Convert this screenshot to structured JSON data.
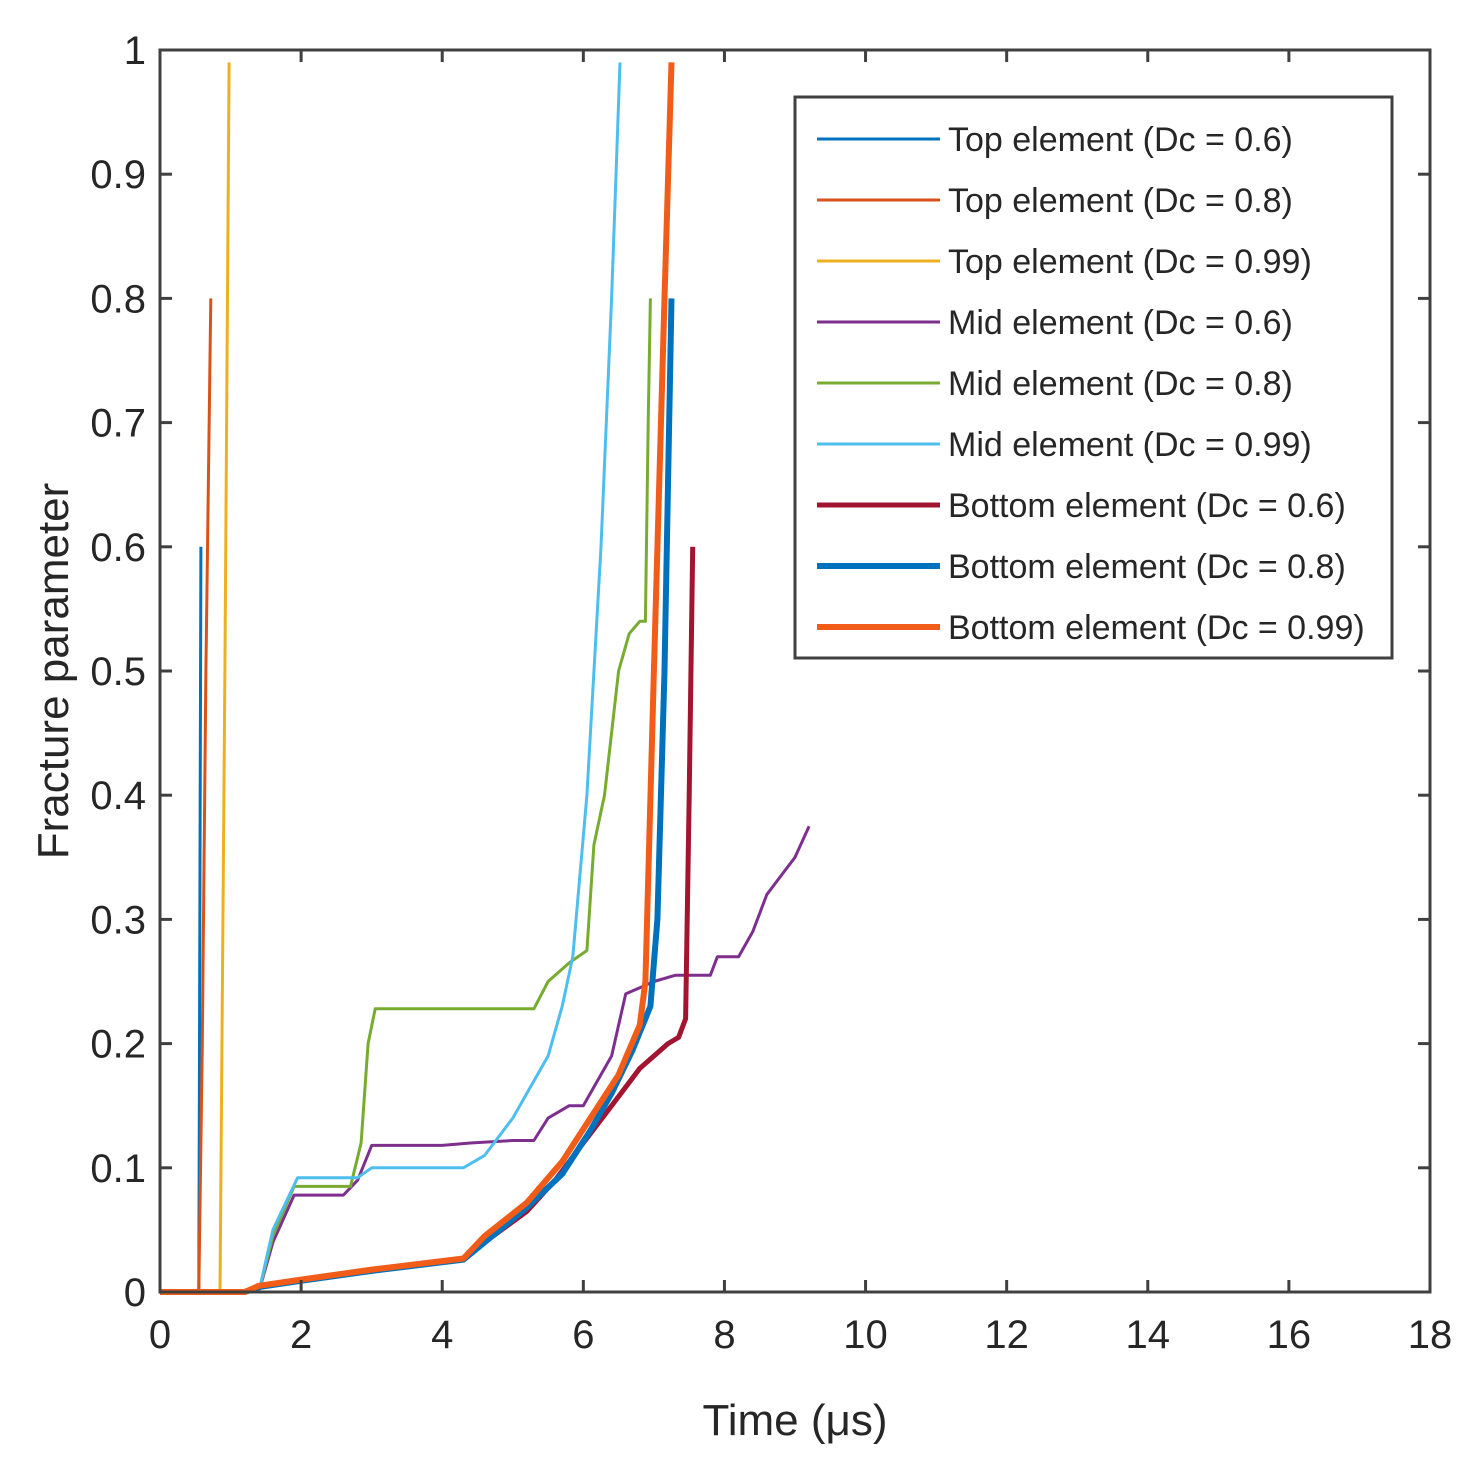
{
  "chart_data": {
    "type": "line",
    "title": "",
    "xlabel": "Time (μs)",
    "ylabel": "Fracture parameter",
    "xlim": [
      0,
      18
    ],
    "ylim": [
      0,
      1
    ],
    "xticks": [
      0,
      2,
      4,
      6,
      8,
      10,
      12,
      14,
      16,
      18
    ],
    "yticks": [
      0,
      0.1,
      0.2,
      0.3,
      0.4,
      0.5,
      0.6,
      0.7,
      0.8,
      0.9,
      1
    ],
    "xtick_labels": [
      "0",
      "2",
      "4",
      "6",
      "8",
      "10",
      "12",
      "14",
      "16",
      "18"
    ],
    "ytick_labels": [
      "0",
      "0.1",
      "0.2",
      "0.3",
      "0.4",
      "0.5",
      "0.6",
      "0.7",
      "0.8",
      "0.9",
      "1"
    ],
    "grid": false,
    "legend_position": "top-right",
    "series": [
      {
        "name": "Top element (Dc = 0.6)",
        "color": "#0072BD",
        "width": 3,
        "points": [
          [
            0,
            0
          ],
          [
            0.55,
            0
          ],
          [
            0.58,
            0.6
          ]
        ]
      },
      {
        "name": "Top element (Dc = 0.8)",
        "color": "#D95319",
        "width": 3,
        "points": [
          [
            0,
            0
          ],
          [
            0.55,
            0
          ],
          [
            0.6,
            0.2
          ],
          [
            0.65,
            0.5
          ],
          [
            0.72,
            0.8
          ]
        ]
      },
      {
        "name": "Top element (Dc = 0.99)",
        "color": "#EDB120",
        "width": 3,
        "points": [
          [
            0,
            0
          ],
          [
            0.85,
            0
          ],
          [
            0.92,
            0.5
          ],
          [
            0.98,
            0.99
          ]
        ]
      },
      {
        "name": "Mid element (Dc = 0.6)",
        "color": "#7E2F8E",
        "width": 3,
        "points": [
          [
            0,
            0
          ],
          [
            1.4,
            0
          ],
          [
            1.6,
            0.04
          ],
          [
            1.9,
            0.078
          ],
          [
            2.6,
            0.078
          ],
          [
            2.8,
            0.09
          ],
          [
            3.0,
            0.118
          ],
          [
            4.0,
            0.118
          ],
          [
            4.4,
            0.12
          ],
          [
            5.0,
            0.122
          ],
          [
            5.3,
            0.122
          ],
          [
            5.5,
            0.14
          ],
          [
            5.8,
            0.15
          ],
          [
            6.0,
            0.15
          ],
          [
            6.2,
            0.17
          ],
          [
            6.4,
            0.19
          ],
          [
            6.6,
            0.24
          ],
          [
            6.8,
            0.245
          ],
          [
            7.0,
            0.25
          ],
          [
            7.3,
            0.255
          ],
          [
            7.8,
            0.255
          ],
          [
            7.9,
            0.27
          ],
          [
            8.2,
            0.27
          ],
          [
            8.4,
            0.29
          ],
          [
            8.6,
            0.32
          ],
          [
            8.8,
            0.335
          ],
          [
            9.0,
            0.35
          ],
          [
            9.2,
            0.375
          ]
        ]
      },
      {
        "name": "Mid element (Dc = 0.8)",
        "color": "#77AC30",
        "width": 3,
        "points": [
          [
            0,
            0
          ],
          [
            1.4,
            0
          ],
          [
            1.6,
            0.045
          ],
          [
            1.9,
            0.085
          ],
          [
            2.7,
            0.085
          ],
          [
            2.85,
            0.12
          ],
          [
            2.95,
            0.2
          ],
          [
            3.05,
            0.228
          ],
          [
            5.3,
            0.228
          ],
          [
            5.5,
            0.25
          ],
          [
            5.8,
            0.265
          ],
          [
            6.05,
            0.275
          ],
          [
            6.15,
            0.36
          ],
          [
            6.3,
            0.4
          ],
          [
            6.5,
            0.5
          ],
          [
            6.65,
            0.53
          ],
          [
            6.8,
            0.54
          ],
          [
            6.88,
            0.54
          ],
          [
            6.92,
            0.7
          ],
          [
            6.95,
            0.8
          ]
        ]
      },
      {
        "name": "Mid element (Dc = 0.99)",
        "color": "#4DBEEE",
        "width": 3,
        "points": [
          [
            0,
            0
          ],
          [
            1.4,
            0
          ],
          [
            1.6,
            0.05
          ],
          [
            1.95,
            0.092
          ],
          [
            2.8,
            0.092
          ],
          [
            3.0,
            0.1
          ],
          [
            4.3,
            0.1
          ],
          [
            4.6,
            0.11
          ],
          [
            5.0,
            0.14
          ],
          [
            5.2,
            0.16
          ],
          [
            5.5,
            0.19
          ],
          [
            5.7,
            0.23
          ],
          [
            5.85,
            0.27
          ],
          [
            6.05,
            0.4
          ],
          [
            6.25,
            0.6
          ],
          [
            6.4,
            0.8
          ],
          [
            6.52,
            0.99
          ]
        ]
      },
      {
        "name": "Bottom element (Dc = 0.6)",
        "color": "#A2142F",
        "width": 5,
        "points": [
          [
            0,
            0
          ],
          [
            1.2,
            0
          ],
          [
            1.4,
            0.005
          ],
          [
            2.0,
            0.01
          ],
          [
            3.0,
            0.018
          ],
          [
            4.3,
            0.027
          ],
          [
            4.6,
            0.04
          ],
          [
            5.2,
            0.065
          ],
          [
            5.6,
            0.09
          ],
          [
            6.0,
            0.12
          ],
          [
            6.4,
            0.15
          ],
          [
            6.8,
            0.18
          ],
          [
            7.2,
            0.2
          ],
          [
            7.35,
            0.205
          ],
          [
            7.45,
            0.22
          ],
          [
            7.5,
            0.4
          ],
          [
            7.55,
            0.6
          ]
        ]
      },
      {
        "name": "Bottom element (Dc = 0.8)",
        "color": "#0072BD",
        "width": 6,
        "points": [
          [
            0,
            0
          ],
          [
            1.2,
            0
          ],
          [
            1.4,
            0.004
          ],
          [
            2.0,
            0.009
          ],
          [
            3.0,
            0.017
          ],
          [
            4.3,
            0.026
          ],
          [
            4.6,
            0.04
          ],
          [
            5.2,
            0.068
          ],
          [
            5.7,
            0.095
          ],
          [
            6.1,
            0.13
          ],
          [
            6.4,
            0.16
          ],
          [
            6.7,
            0.195
          ],
          [
            6.95,
            0.23
          ],
          [
            7.05,
            0.3
          ],
          [
            7.15,
            0.5
          ],
          [
            7.25,
            0.8
          ]
        ]
      },
      {
        "name": "Bottom element (Dc = 0.99)",
        "color": "#F25C19",
        "width": 6,
        "points": [
          [
            0,
            0
          ],
          [
            1.2,
            0
          ],
          [
            1.4,
            0.005
          ],
          [
            2.0,
            0.01
          ],
          [
            3.0,
            0.018
          ],
          [
            4.3,
            0.027
          ],
          [
            4.6,
            0.045
          ],
          [
            5.2,
            0.072
          ],
          [
            5.7,
            0.105
          ],
          [
            6.1,
            0.14
          ],
          [
            6.5,
            0.175
          ],
          [
            6.8,
            0.215
          ],
          [
            6.88,
            0.25
          ],
          [
            7.0,
            0.5
          ],
          [
            7.15,
            0.8
          ],
          [
            7.25,
            0.99
          ]
        ]
      }
    ]
  }
}
